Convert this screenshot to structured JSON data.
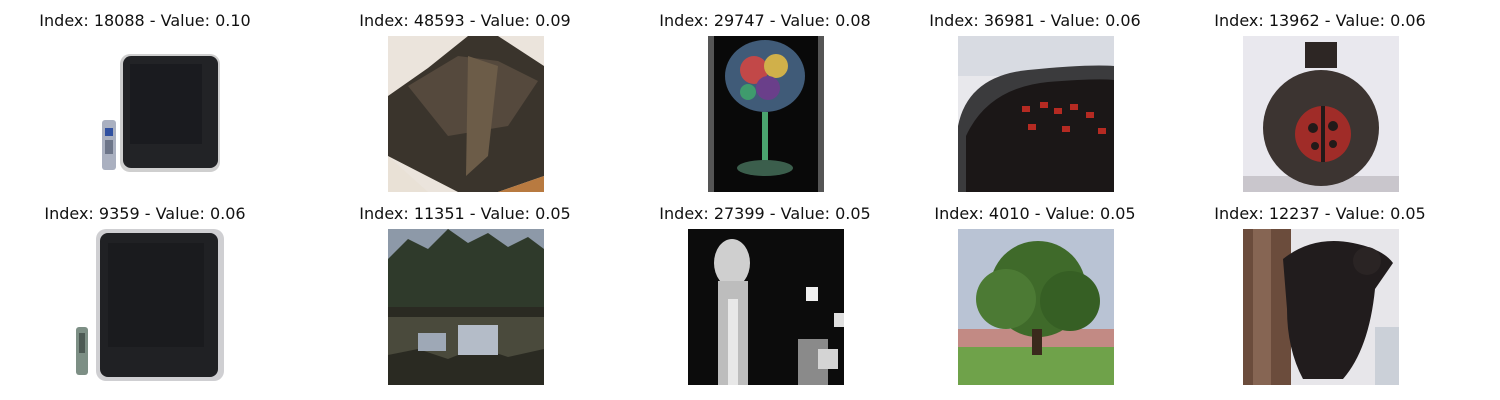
{
  "items": [
    {
      "title": "Index: 18088 - Value: 0.10",
      "image": "crt-television-with-remote"
    },
    {
      "title": "Index: 48593 - Value: 0.09",
      "image": "dark-boxy-object"
    },
    {
      "title": "Index: 29747 - Value: 0.08",
      "image": "colorful-glass-on-black"
    },
    {
      "title": "Index: 36981 - Value: 0.06",
      "image": "alarm-clock-red-digits"
    },
    {
      "title": "Index: 13962 - Value: 0.06",
      "image": "ladybug-jar"
    },
    {
      "title": "Index: 9359 - Value: 0.06",
      "image": "crt-television-with-remote"
    },
    {
      "title": "Index: 11351 - Value: 0.05",
      "image": "lake-reflection"
    },
    {
      "title": "Index: 27399 - Value: 0.05",
      "image": "grayscale-portrait"
    },
    {
      "title": "Index: 4010 - Value: 0.05",
      "image": "green-tree-in-field"
    },
    {
      "title": "Index: 12237 - Value: 0.05",
      "image": "black-bear-cub-on-tree"
    }
  ]
}
